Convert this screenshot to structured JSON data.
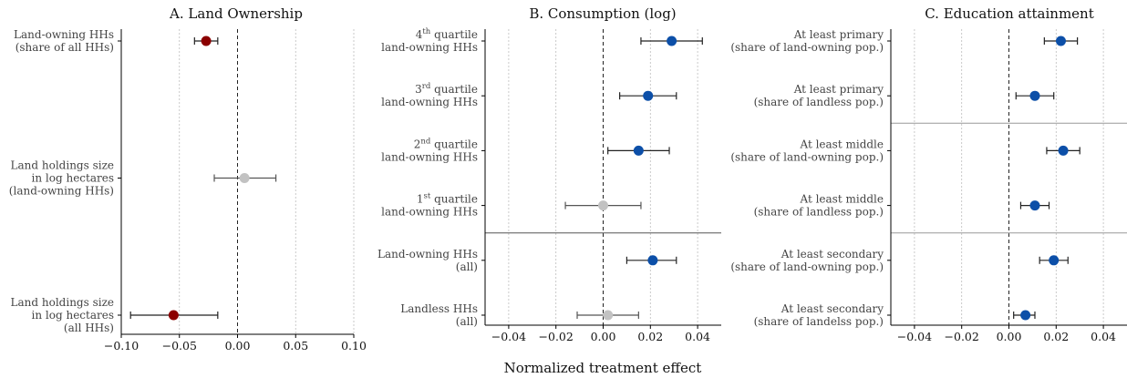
{
  "figure": {
    "xlabel": "Normalized treatment effect"
  },
  "colors": {
    "significant_negative": "#8b0000",
    "significant_positive": "#0c4fa8",
    "not_significant": "#c2c2c2",
    "grid": "#bdbdbd",
    "axis": "#000000"
  },
  "chart_data": [
    {
      "type": "scatter",
      "variant": "coefficient-plot",
      "title": "A. Land Ownership",
      "xlim": [
        -0.1,
        0.1
      ],
      "xticks": [
        -0.1,
        -0.05,
        0.0,
        0.05,
        0.1
      ],
      "xtick_labels": [
        "−0.10",
        "−0.05",
        "0.00",
        "0.05",
        "0.10"
      ],
      "reference_line": 0,
      "grid": "vertical dotted",
      "categories": [
        {
          "lines": [
            "Land-owning HHs",
            "(share of all HHs)"
          ]
        },
        {
          "lines": [
            "Land holdings size",
            "in log hectares",
            "(land-owning HHs)"
          ]
        },
        {
          "lines": [
            "Land holdings size",
            "in log hectares",
            "(all HHs)"
          ]
        }
      ],
      "slots": [
        0,
        2.5,
        5
      ],
      "points": [
        {
          "estimate": -0.027,
          "ci": [
            -0.037,
            -0.017
          ],
          "status": "negative"
        },
        {
          "estimate": 0.006,
          "ci": [
            -0.02,
            0.033
          ],
          "status": "insignificant"
        },
        {
          "estimate": -0.055,
          "ci": [
            -0.092,
            -0.017
          ],
          "status": "negative"
        }
      ],
      "separators": []
    },
    {
      "type": "scatter",
      "variant": "coefficient-plot",
      "title": "B. Consumption (log)",
      "xlim": [
        -0.05,
        0.05
      ],
      "xticks": [
        -0.04,
        -0.02,
        0.0,
        0.02,
        0.04
      ],
      "xtick_labels": [
        "−0.04",
        "−0.02",
        "0.00",
        "0.02",
        "0.04"
      ],
      "reference_line": 0,
      "grid": "vertical dotted",
      "categories": [
        {
          "lines": [
            "land-owning HHs"
          ],
          "ordinal": {
            "num": "4",
            "sup": "th",
            "rest": " quartile"
          }
        },
        {
          "lines": [
            "land-owning HHs"
          ],
          "ordinal": {
            "num": "3",
            "sup": "rd",
            "rest": " quartile"
          }
        },
        {
          "lines": [
            "land-owning HHs"
          ],
          "ordinal": {
            "num": "2",
            "sup": "nd",
            "rest": " quartile"
          }
        },
        {
          "lines": [
            "land-owning HHs"
          ],
          "ordinal": {
            "num": "1",
            "sup": "st",
            "rest": " quartile"
          }
        },
        {
          "lines": [
            "Land-owning HHs",
            "(all)"
          ]
        },
        {
          "lines": [
            "Landless HHs",
            "(all)"
          ]
        }
      ],
      "slots": [
        0,
        1,
        2,
        3,
        4,
        5
      ],
      "points": [
        {
          "estimate": 0.029,
          "ci": [
            0.016,
            0.042
          ],
          "status": "positive"
        },
        {
          "estimate": 0.019,
          "ci": [
            0.007,
            0.031
          ],
          "status": "positive"
        },
        {
          "estimate": 0.015,
          "ci": [
            0.002,
            0.028
          ],
          "status": "positive"
        },
        {
          "estimate": 0.0,
          "ci": [
            -0.016,
            0.016
          ],
          "status": "insignificant"
        },
        {
          "estimate": 0.021,
          "ci": [
            0.01,
            0.031
          ],
          "status": "positive"
        },
        {
          "estimate": 0.002,
          "ci": [
            -0.011,
            0.015
          ],
          "status": "insignificant"
        }
      ],
      "separators": [
        3.5
      ]
    },
    {
      "type": "scatter",
      "variant": "coefficient-plot",
      "title": "C. Education attainment",
      "xlim": [
        -0.05,
        0.05
      ],
      "xticks": [
        -0.04,
        -0.02,
        0.0,
        0.02,
        0.04
      ],
      "xtick_labels": [
        "−0.04",
        "−0.02",
        "0.00",
        "0.02",
        "0.04"
      ],
      "reference_line": 0,
      "grid": "vertical dotted",
      "categories": [
        {
          "lines": [
            "At least primary",
            "(share of land-owning pop.)"
          ]
        },
        {
          "lines": [
            "At least primary",
            "(share of landless pop.)"
          ]
        },
        {
          "lines": [
            "At least middle",
            "(share of land-owning pop.)"
          ]
        },
        {
          "lines": [
            "At least middle",
            "(share of landless pop.)"
          ]
        },
        {
          "lines": [
            "At least secondary",
            "(share of land-owning pop.)"
          ]
        },
        {
          "lines": [
            "At least secondary",
            "(share of landelss pop.)"
          ]
        }
      ],
      "slots": [
        0,
        1,
        2,
        3,
        4,
        5
      ],
      "points": [
        {
          "estimate": 0.022,
          "ci": [
            0.015,
            0.029
          ],
          "status": "positive"
        },
        {
          "estimate": 0.011,
          "ci": [
            0.003,
            0.019
          ],
          "status": "positive"
        },
        {
          "estimate": 0.023,
          "ci": [
            0.016,
            0.03
          ],
          "status": "positive"
        },
        {
          "estimate": 0.011,
          "ci": [
            0.005,
            0.017
          ],
          "status": "positive"
        },
        {
          "estimate": 0.019,
          "ci": [
            0.013,
            0.025
          ],
          "status": "positive"
        },
        {
          "estimate": 0.007,
          "ci": [
            0.002,
            0.011
          ],
          "status": "positive"
        }
      ],
      "separators": [
        1.5,
        3.5
      ]
    }
  ]
}
